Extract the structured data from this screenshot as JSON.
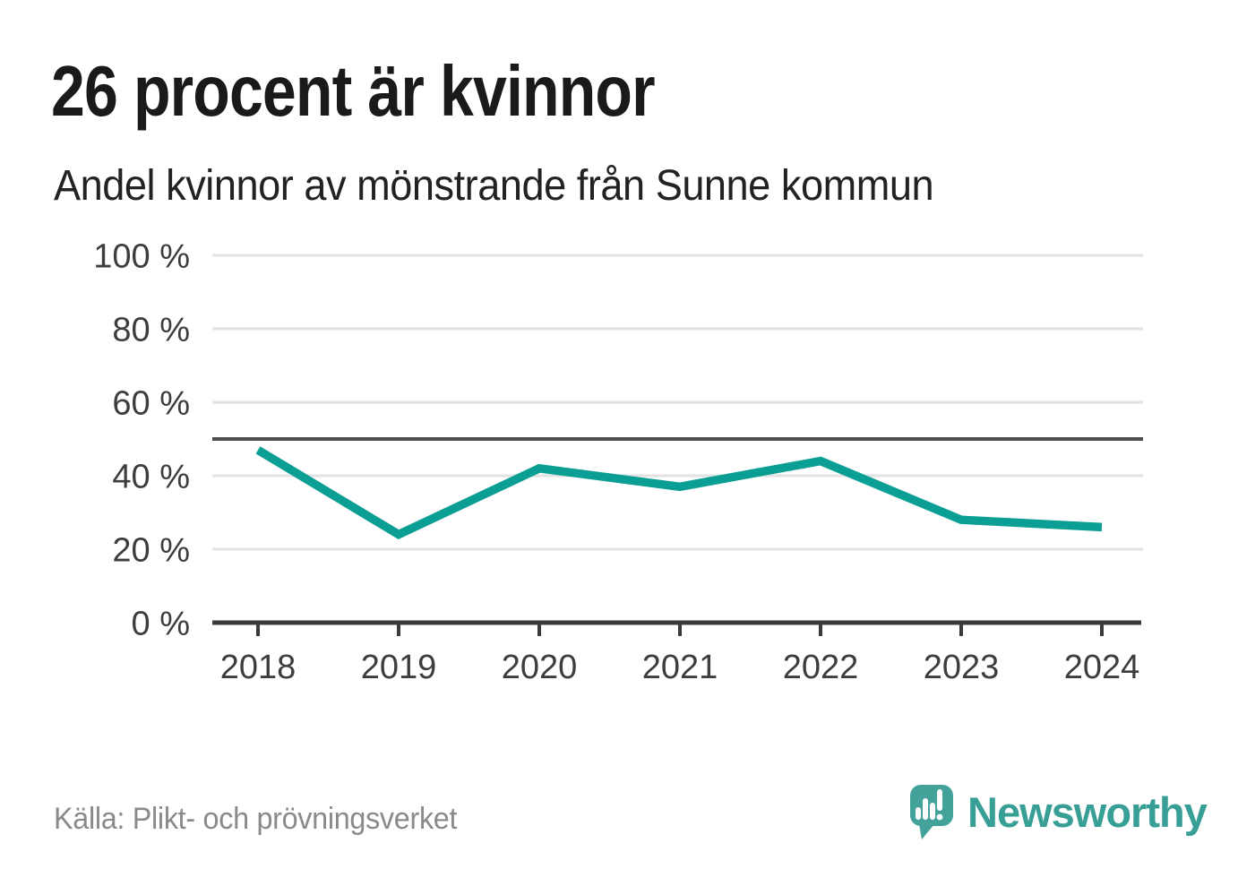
{
  "header": {
    "title": "26 procent är kvinnor",
    "subtitle": "Andel kvinnor av mönstrande från Sunne kommun"
  },
  "chart_data": {
    "type": "line",
    "title": "26 procent är kvinnor",
    "subtitle": "Andel kvinnor av mönstrande från Sunne kommun",
    "xlabel": "",
    "ylabel": "",
    "unit": "%",
    "categories": [
      "2018",
      "2019",
      "2020",
      "2021",
      "2022",
      "2023",
      "2024"
    ],
    "values": [
      47,
      24,
      42,
      37,
      44,
      28,
      26
    ],
    "series_name": "Andel kvinnor av mönstrande",
    "ylim": [
      0,
      100
    ],
    "y_ticks": [
      {
        "value": 0,
        "label": "0 %"
      },
      {
        "value": 20,
        "label": "20 %"
      },
      {
        "value": 40,
        "label": "40 %"
      },
      {
        "value": 60,
        "label": "60 %"
      },
      {
        "value": 80,
        "label": "80 %"
      },
      {
        "value": 100,
        "label": "100 %"
      }
    ],
    "reference_line": {
      "value": 50
    },
    "grid": "horizontal",
    "legend": "none",
    "line_color": "#0a9e94"
  },
  "footer": {
    "source": "Källa: Plikt- och prövningsverket",
    "brand": "Newsworthy"
  },
  "colors": {
    "line": "#0a9e94",
    "grid": "#e2e2e2",
    "reference_line": "#4f4f4f",
    "axis": "#3a3a3a",
    "tick_label": "#3d3d3d",
    "title_text": "#1a1a1a",
    "source_text": "#8a8a8a",
    "brand_icon": "#43a29a",
    "brand_text": "#379f96"
  }
}
